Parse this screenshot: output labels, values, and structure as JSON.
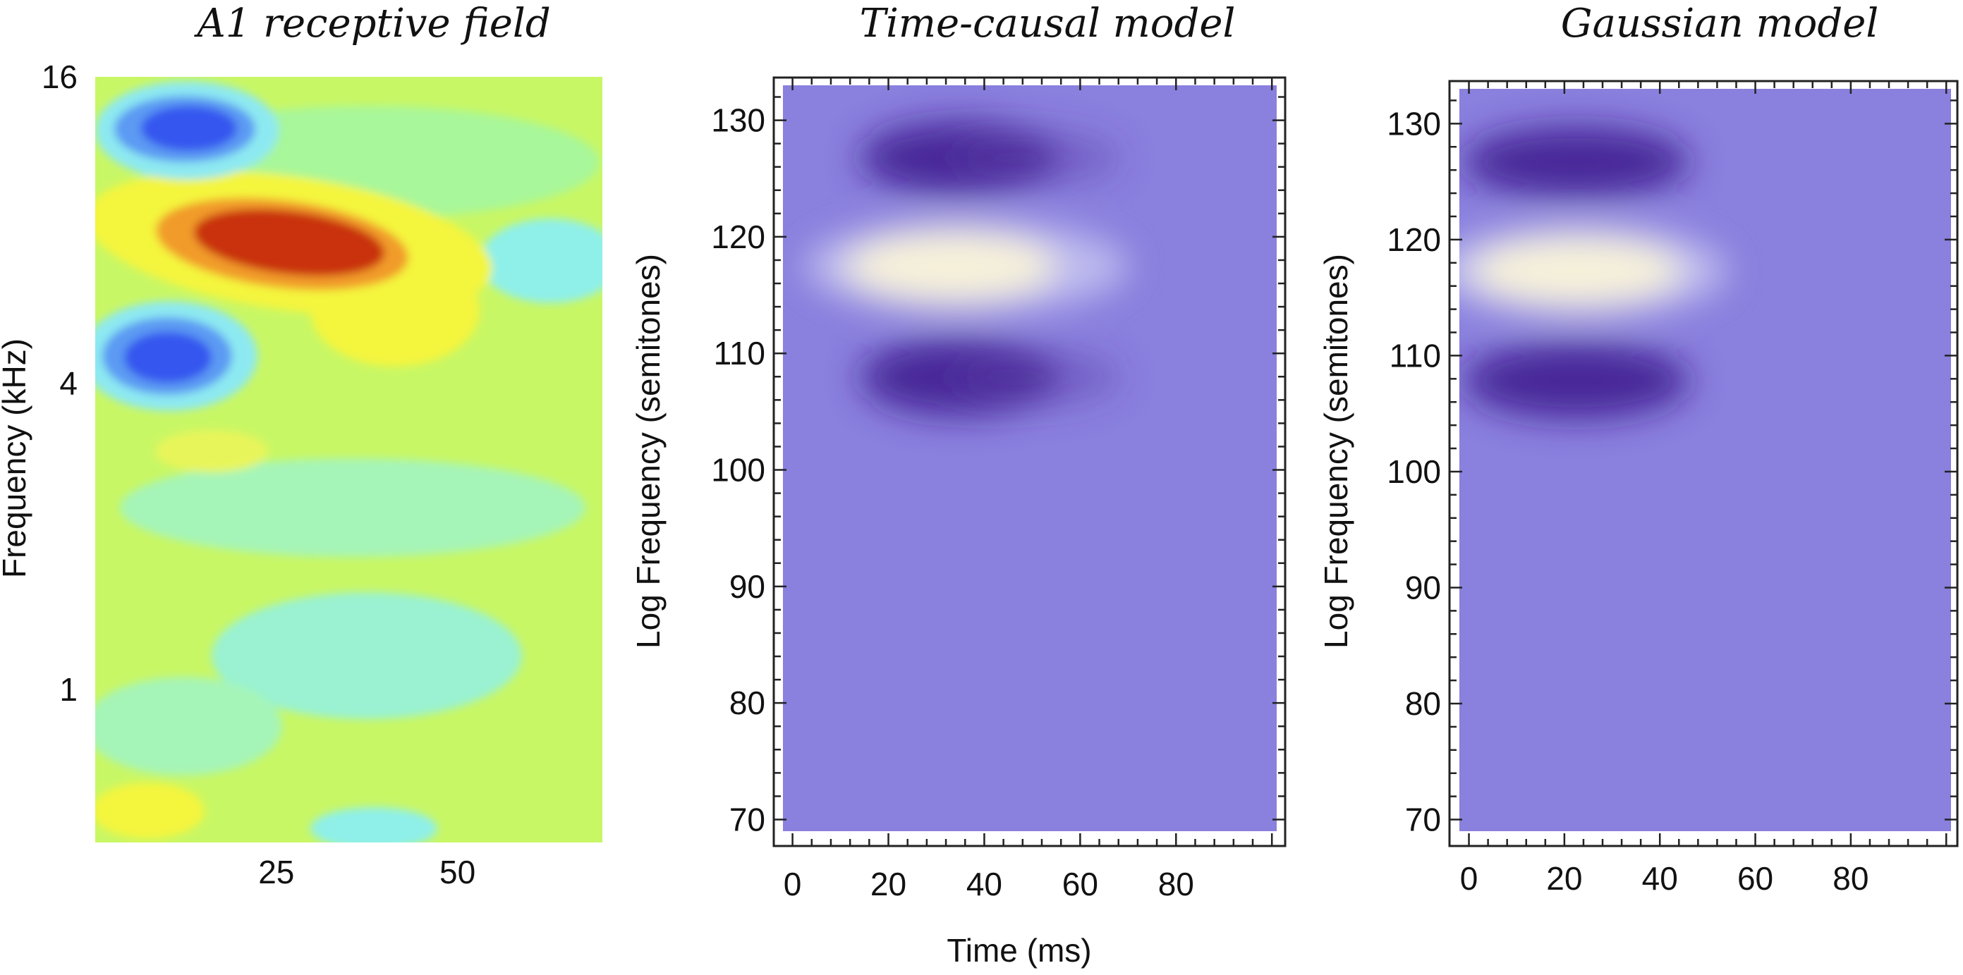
{
  "chart_data": [
    {
      "type": "heatmap",
      "title": "A1 receptive field",
      "xlabel": "",
      "ylabel": "Frequency (kHz)",
      "x_ticks": [
        "25",
        "50"
      ],
      "x_tick_values": [
        25,
        50
      ],
      "xlim": [
        0,
        70
      ],
      "y_scale": "log",
      "y_ticks": [
        "16",
        "4",
        "1"
      ],
      "y_tick_values": [
        16,
        4,
        1
      ],
      "ylim": [
        0.5,
        16
      ],
      "colormap": "jet-contour",
      "blobs": [
        {
          "kind": "excitatory",
          "time_ms": 30,
          "freq_khz": 8.9,
          "peak": 1.0
        },
        {
          "kind": "inhibitory",
          "time_ms": 15,
          "freq_khz": 12.6,
          "peak": -0.85
        },
        {
          "kind": "inhibitory",
          "time_ms": 14,
          "freq_khz": 4.3,
          "peak": -0.85
        },
        {
          "kind": "inhibitory",
          "time_ms": 65,
          "freq_khz": 7.9,
          "peak": -0.3
        }
      ]
    },
    {
      "type": "heatmap",
      "title": "Time-causal model",
      "xlabel": "Time (ms)",
      "ylabel": "Log Frequency (semitones)",
      "x_ticks": [
        "0",
        "20",
        "40",
        "60",
        "80"
      ],
      "x_tick_values": [
        0,
        20,
        40,
        60,
        80
      ],
      "xlim": [
        -2,
        101
      ],
      "y_ticks": [
        "130",
        "120",
        "110",
        "100",
        "90",
        "80",
        "70"
      ],
      "y_tick_values": [
        130,
        120,
        110,
        100,
        90,
        80,
        70
      ],
      "ylim": [
        69,
        133
      ],
      "colormap": "purple-white",
      "background_color": "#8a80de",
      "blobs": [
        {
          "kind": "excitatory",
          "time_ms": 23,
          "freq_semitones": 116,
          "peak": 1.0
        },
        {
          "kind": "inhibitory",
          "time_ms": 23,
          "freq_semitones": 125,
          "peak": -0.6
        },
        {
          "kind": "inhibitory",
          "time_ms": 23,
          "freq_semitones": 107,
          "peak": -0.6
        }
      ]
    },
    {
      "type": "heatmap",
      "title": "Gaussian model",
      "xlabel": "",
      "ylabel": "Log Frequency (semitones)",
      "x_ticks": [
        "0",
        "20",
        "40",
        "60",
        "80"
      ],
      "x_tick_values": [
        0,
        20,
        40,
        60,
        80
      ],
      "xlim": [
        -2,
        101
      ],
      "y_ticks": [
        "130",
        "120",
        "110",
        "100",
        "90",
        "80",
        "70"
      ],
      "y_tick_values": [
        130,
        120,
        110,
        100,
        90,
        80,
        70
      ],
      "ylim": [
        69,
        133
      ],
      "colormap": "purple-white",
      "background_color": "#8a80de",
      "blobs": [
        {
          "kind": "excitatory",
          "time_ms": 25,
          "freq_semitones": 116,
          "peak": 1.0
        },
        {
          "kind": "inhibitory",
          "time_ms": 25,
          "freq_semitones": 125,
          "peak": -0.6
        },
        {
          "kind": "inhibitory",
          "time_ms": 25,
          "freq_semitones": 107,
          "peak": -0.6
        }
      ]
    }
  ]
}
